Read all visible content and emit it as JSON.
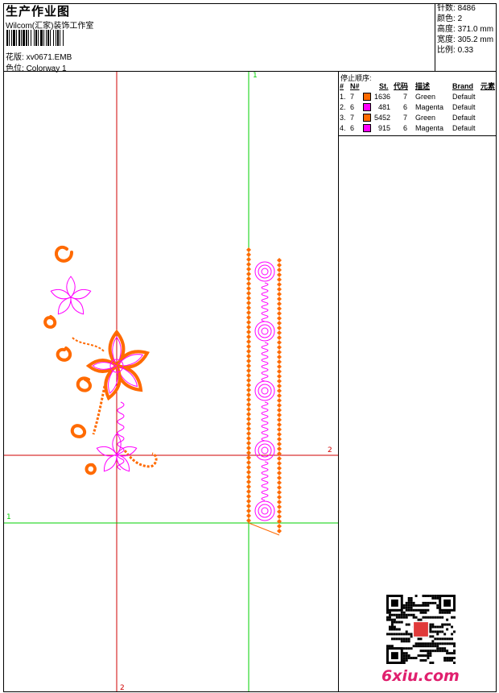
{
  "header": {
    "title": "生产作业图",
    "company": "Wilcom(汇家)装饰工作室",
    "file_label": "花版:",
    "file_name": "xv0671.EMB",
    "colorway_label": "色位:",
    "colorway": "Colorway 1"
  },
  "info": [
    {
      "label": "针数:",
      "value": "8486"
    },
    {
      "label": "颜色:",
      "value": "2"
    },
    {
      "label": "高度:",
      "value": "371.0 mm"
    },
    {
      "label": "宽度:",
      "value": "305.2 mm"
    },
    {
      "label": "比例:",
      "value": "0.33"
    }
  ],
  "stop_sequence": {
    "label": "停止顺序:",
    "columns": [
      "#",
      "N#",
      "St.",
      "代码",
      "描述",
      "Brand",
      "元素"
    ],
    "rows": [
      {
        "idx": "1.",
        "n": "7",
        "color": "#ff6a00",
        "st": "1636",
        "code": "7",
        "desc": "Green",
        "brand": "Default"
      },
      {
        "idx": "2.",
        "n": "6",
        "color": "#ff00ff",
        "st": "481",
        "code": "6",
        "desc": "Magenta",
        "brand": "Default"
      },
      {
        "idx": "3.",
        "n": "7",
        "color": "#ff6a00",
        "st": "5452",
        "code": "7",
        "desc": "Green",
        "brand": "Default"
      },
      {
        "idx": "4.",
        "n": "6",
        "color": "#ff00ff",
        "st": "915",
        "code": "6",
        "desc": "Magenta",
        "brand": "Default"
      }
    ]
  },
  "canvas": {
    "guide1_label": "1",
    "guide2_label": "2",
    "guide1_color": "#00d000",
    "guide2_color": "#d00000",
    "thread_orange": "#ff6a00",
    "thread_magenta": "#ff00ff"
  },
  "watermark": "6xiu.com"
}
